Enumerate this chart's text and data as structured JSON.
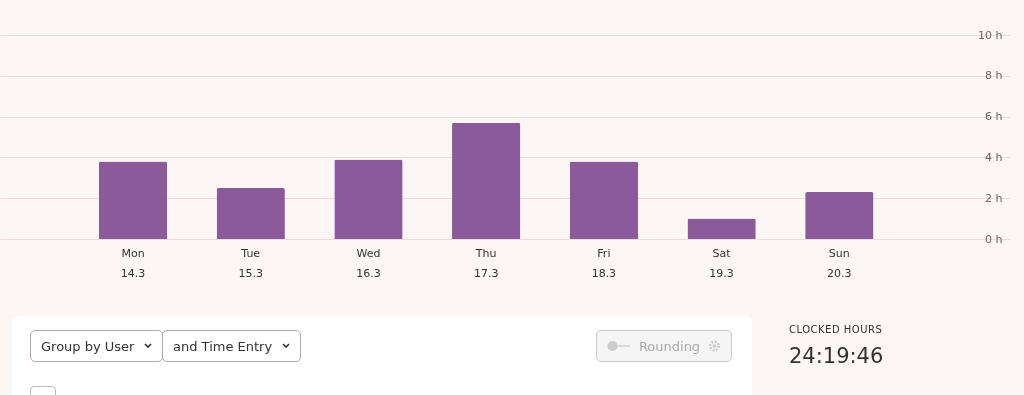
{
  "chart_data": {
    "type": "bar",
    "categories": [
      "Mon\n14.3",
      "Tue\n15.3",
      "Wed\n16.3",
      "Thu\n17.3",
      "Fri\n18.3",
      "Sat\n19.3",
      "Sun\n20.3"
    ],
    "values": [
      3.8,
      2.5,
      3.9,
      5.7,
      3.8,
      1.0,
      2.3
    ],
    "color": "#8a5a9b",
    "ylim": [
      0,
      10
    ],
    "yticks": [
      {
        "value": 0,
        "label": "0 h"
      },
      {
        "value": 2,
        "label": "2 h"
      },
      {
        "value": 4,
        "label": "4 h"
      },
      {
        "value": 6,
        "label": "6 h"
      },
      {
        "value": 8,
        "label": "8 h"
      },
      {
        "value": 10,
        "label": "10 h"
      }
    ],
    "grid": "y",
    "annotations": [
      "Group by User",
      "and Time Entry",
      "Rounding",
      "CLOCKED HOURS",
      "24:19:46"
    ]
  }
}
